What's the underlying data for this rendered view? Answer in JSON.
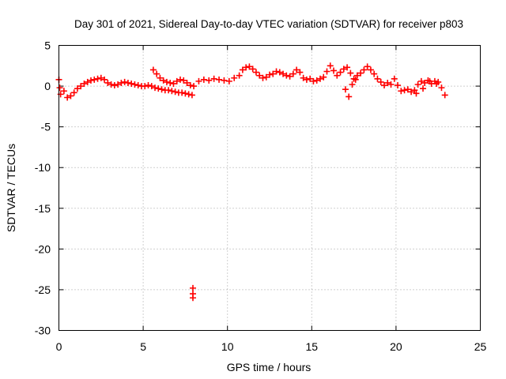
{
  "chart_data": {
    "type": "scatter",
    "title": "Day 301 of 2021, Sidereal Day-to-day VTEC variation (SDTVAR) for receiver p803",
    "xlabel": "GPS time / hours",
    "ylabel": "SDTVAR / TECUs",
    "xlim": [
      0,
      25
    ],
    "ylim": [
      -30,
      5
    ],
    "xticks": [
      0,
      5,
      10,
      15,
      20,
      25
    ],
    "xtick_labels": [
      "0",
      "5",
      "10",
      "15",
      "20",
      "25"
    ],
    "yticks": [
      5,
      0,
      -5,
      -10,
      -15,
      -20,
      -25,
      -30
    ],
    "ytick_labels": [
      "5",
      "0",
      "-5",
      "-10",
      "-15",
      "-20",
      "-25",
      "-30"
    ],
    "grid": true,
    "marker": "+",
    "series_color": "#ff0000",
    "series": [
      {
        "name": "SDTVAR",
        "x": [
          0.0,
          0.05,
          0.1,
          0.3,
          0.5,
          0.7,
          0.9,
          1.1,
          1.3,
          1.5,
          1.7,
          1.9,
          2.1,
          2.3,
          2.5,
          2.7,
          2.9,
          3.1,
          3.3,
          3.5,
          3.7,
          3.9,
          4.1,
          4.3,
          4.5,
          4.7,
          4.9,
          5.1,
          5.3,
          5.5,
          5.7,
          5.9,
          6.1,
          6.3,
          6.5,
          6.7,
          6.9,
          7.1,
          7.3,
          7.5,
          7.7,
          7.9,
          5.6,
          5.8,
          6.0,
          6.2,
          6.4,
          6.6,
          6.8,
          7.0,
          7.2,
          7.4,
          7.6,
          7.8,
          8.0,
          7.95,
          7.95,
          7.95,
          8.3,
          8.6,
          8.9,
          9.2,
          9.5,
          9.8,
          10.1,
          10.4,
          10.7,
          10.9,
          11.1,
          11.3,
          11.5,
          11.7,
          11.9,
          12.1,
          12.3,
          12.5,
          12.7,
          12.9,
          13.1,
          13.3,
          13.5,
          13.7,
          13.9,
          14.1,
          14.3,
          14.5,
          14.7,
          14.9,
          15.1,
          15.3,
          15.5,
          15.7,
          15.9,
          16.1,
          16.3,
          16.5,
          16.7,
          16.9,
          17.1,
          17.3,
          17.5,
          17.7,
          17.9,
          18.1,
          18.3,
          18.5,
          18.7,
          18.9,
          17.0,
          17.2,
          17.4,
          17.6,
          19.1,
          19.3,
          19.5,
          19.7,
          19.9,
          20.1,
          20.3,
          20.5,
          20.7,
          20.9,
          21.1,
          21.3,
          21.5,
          21.7,
          21.9,
          22.1,
          22.3,
          22.5,
          22.7,
          22.9,
          21.2,
          21.6,
          22.0,
          22.4
        ],
        "y": [
          0.8,
          -0.2,
          -1.0,
          -0.6,
          -1.4,
          -1.2,
          -0.8,
          -0.3,
          0.0,
          0.3,
          0.5,
          0.7,
          0.8,
          0.9,
          1.0,
          0.8,
          0.4,
          0.2,
          0.1,
          0.2,
          0.4,
          0.5,
          0.4,
          0.3,
          0.2,
          0.1,
          0.0,
          0.0,
          0.1,
          0.0,
          -0.2,
          -0.3,
          -0.4,
          -0.5,
          -0.5,
          -0.6,
          -0.7,
          -0.8,
          -0.8,
          -0.9,
          -1.0,
          -1.1,
          2.0,
          1.5,
          1.0,
          0.7,
          0.5,
          0.4,
          0.3,
          0.6,
          0.8,
          0.7,
          0.4,
          0.1,
          0.0,
          -24.8,
          -25.5,
          -26.0,
          0.6,
          0.8,
          0.7,
          0.9,
          0.8,
          0.7,
          0.6,
          1.0,
          1.3,
          2.0,
          2.3,
          2.4,
          2.1,
          1.7,
          1.3,
          1.0,
          1.1,
          1.4,
          1.5,
          1.8,
          1.7,
          1.5,
          1.3,
          1.2,
          1.5,
          2.0,
          1.7,
          1.0,
          0.8,
          0.9,
          0.6,
          0.7,
          0.9,
          1.1,
          1.8,
          2.5,
          1.9,
          1.3,
          1.7,
          2.1,
          2.3,
          1.6,
          0.9,
          1.3,
          1.6,
          2.0,
          2.4,
          2.0,
          1.5,
          0.9,
          -0.4,
          -1.3,
          0.2,
          0.8,
          0.5,
          0.1,
          0.4,
          0.2,
          0.9,
          0.1,
          -0.6,
          -0.5,
          -0.4,
          -0.7,
          -0.5,
          0.2,
          0.6,
          0.4,
          0.7,
          0.3,
          0.6,
          0.5,
          -0.2,
          -1.1,
          -0.9,
          -0.3,
          0.6,
          0.3
        ]
      }
    ]
  }
}
